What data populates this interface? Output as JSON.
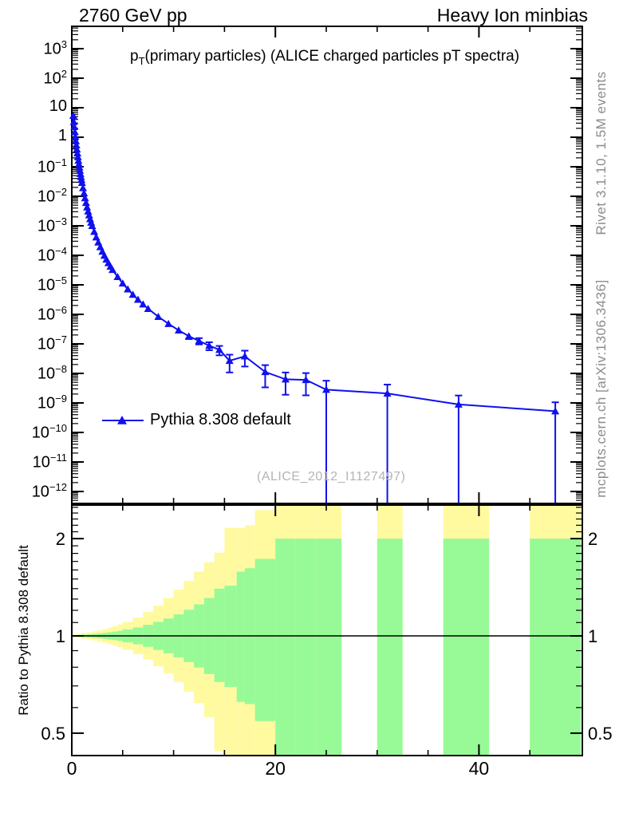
{
  "header": {
    "left": "2760 GeV pp",
    "right": "Heavy Ion minbias"
  },
  "side_notes": {
    "top_right": "Rivet 3.1.10,  1.5M events",
    "bottom_right": "mcplots.cern.ch [arXiv:1306.3436]"
  },
  "watermark": "(ALICE_2012_I1127497)",
  "legend": {
    "entries": [
      {
        "label": "Pythia 8.308 default",
        "marker": "triangle-up-icon",
        "color": "#1010ee"
      }
    ]
  },
  "chart_data": {
    "type": "line",
    "title": {
      "prefix": "p",
      "sub": "T",
      "rest": "(primary particles) (ALICE charged particles pT spectra)"
    },
    "x_axis": {
      "min": 0,
      "max": 50,
      "major_ticks": [
        20,
        40
      ],
      "minor_ticks": [
        5,
        10,
        15,
        25,
        30,
        35,
        45
      ],
      "labels": [
        {
          "text": "0",
          "value": 0
        },
        {
          "text": "20",
          "value": 20
        },
        {
          "text": "40",
          "value": 40
        }
      ]
    },
    "y_axis_main": {
      "scale": "log",
      "top_log10": 3.7,
      "bottom_log10": -12.4,
      "decade_labels": [
        {
          "lg": 3,
          "base": "10",
          "exp": "3"
        },
        {
          "lg": 2,
          "base": "10",
          "exp": "2"
        },
        {
          "lg": 1,
          "base": "10",
          "exp": ""
        },
        {
          "lg": 0,
          "base": "1",
          "exp": ""
        },
        {
          "lg": -1,
          "base": "10",
          "exp": "−1"
        },
        {
          "lg": -2,
          "base": "10",
          "exp": "−2"
        },
        {
          "lg": -3,
          "base": "10",
          "exp": "−3"
        },
        {
          "lg": -4,
          "base": "10",
          "exp": "−4"
        },
        {
          "lg": -5,
          "base": "10",
          "exp": "−5"
        },
        {
          "lg": -6,
          "base": "10",
          "exp": "−6"
        },
        {
          "lg": -7,
          "base": "10",
          "exp": "−7"
        },
        {
          "lg": -8,
          "base": "10",
          "exp": "−8"
        },
        {
          "lg": -9,
          "base": "10",
          "exp": "−9"
        },
        {
          "lg": -10,
          "base": "10",
          "exp": "−10"
        },
        {
          "lg": -11,
          "base": "10",
          "exp": "−11"
        },
        {
          "lg": -12,
          "base": "10",
          "exp": "−12"
        }
      ]
    },
    "y_axis_ratio": {
      "scale": "log",
      "min": 0.42,
      "max": 2.6,
      "label": "Ratio to Pythia 8.308 default",
      "tick_labels": [
        {
          "text": "2",
          "value": 2
        },
        {
          "text": "1",
          "value": 1
        },
        {
          "text": "0.5",
          "value": 0.5
        }
      ],
      "minor_ticks": [
        0.6,
        0.7,
        0.8,
        0.9,
        1.1,
        1.2,
        1.3,
        1.4,
        1.5,
        1.6,
        1.7,
        1.8,
        1.9,
        2.1,
        2.2,
        2.3,
        2.4,
        2.5
      ]
    },
    "series": [
      {
        "name": "Pythia 8.308 default",
        "color": "#1010ee",
        "marker": "triangle-up",
        "points_format": [
          "pt_GeV",
          "log10_value",
          "relative_error"
        ],
        "points": [
          [
            0.15,
            0.73,
            0
          ],
          [
            0.2,
            0.52,
            0
          ],
          [
            0.25,
            0.35,
            0
          ],
          [
            0.3,
            0.18,
            0
          ],
          [
            0.35,
            0.02,
            0
          ],
          [
            0.4,
            -0.13,
            0
          ],
          [
            0.45,
            -0.27,
            0
          ],
          [
            0.5,
            -0.41,
            0
          ],
          [
            0.55,
            -0.54,
            0
          ],
          [
            0.6,
            -0.67,
            0
          ],
          [
            0.65,
            -0.79,
            0
          ],
          [
            0.7,
            -0.91,
            0
          ],
          [
            0.75,
            -1.02,
            0
          ],
          [
            0.8,
            -1.13,
            0
          ],
          [
            0.85,
            -1.24,
            0
          ],
          [
            0.9,
            -1.34,
            0
          ],
          [
            0.95,
            -1.44,
            0
          ],
          [
            1.0,
            -1.54,
            0
          ],
          [
            1.1,
            -1.72,
            0
          ],
          [
            1.2,
            -1.9,
            0
          ],
          [
            1.3,
            -2.06,
            0
          ],
          [
            1.4,
            -2.22,
            0
          ],
          [
            1.5,
            -2.37,
            0
          ],
          [
            1.6,
            -2.51,
            0
          ],
          [
            1.7,
            -2.64,
            0
          ],
          [
            1.8,
            -2.77,
            0
          ],
          [
            1.9,
            -2.89,
            0
          ],
          [
            2.0,
            -3.0,
            0
          ],
          [
            2.2,
            -3.2,
            0
          ],
          [
            2.4,
            -3.39,
            0
          ],
          [
            2.6,
            -3.56,
            0
          ],
          [
            2.8,
            -3.72,
            0
          ],
          [
            3.0,
            -3.87,
            0
          ],
          [
            3.2,
            -4.01,
            0
          ],
          [
            3.4,
            -4.14,
            0
          ],
          [
            3.6,
            -4.26,
            0
          ],
          [
            3.8,
            -4.38,
            0
          ],
          [
            4.0,
            -4.49,
            0.04
          ],
          [
            4.5,
            -4.73,
            0.04
          ],
          [
            5.0,
            -4.95,
            0.05
          ],
          [
            5.5,
            -5.15,
            0.05
          ],
          [
            6.0,
            -5.33,
            0.06
          ],
          [
            6.5,
            -5.5,
            0.07
          ],
          [
            7.0,
            -5.66,
            0.08
          ],
          [
            7.5,
            -5.81,
            0.09
          ],
          [
            8.5,
            -6.08,
            0.11
          ],
          [
            9.5,
            -6.32,
            0.14
          ],
          [
            10.5,
            -6.54,
            0.17
          ],
          [
            11.5,
            -6.74,
            0.2
          ],
          [
            12.5,
            -6.9,
            0.24
          ],
          [
            13.5,
            -7.06,
            0.3
          ],
          [
            14.5,
            -7.2,
            0.35
          ],
          [
            15.5,
            -7.57,
            0.6
          ],
          [
            17.0,
            -7.42,
            0.55
          ],
          [
            19.0,
            -7.95,
            0.7
          ],
          [
            21.0,
            -8.2,
            0.7
          ],
          [
            23.0,
            -8.22,
            0.7
          ],
          [
            25.0,
            -8.55,
            1
          ],
          [
            31.0,
            -8.68,
            1
          ],
          [
            38.0,
            -9.05,
            1
          ],
          [
            47.5,
            -9.28,
            1
          ]
        ]
      }
    ],
    "ratio_bands": {
      "yellow": "#fffaa0",
      "green": "#97fa97",
      "bins_format": [
        "pt_lo",
        "pt_hi",
        "yellow_lo",
        "yellow_hi",
        "green_lo",
        "green_hi"
      ],
      "bins": [
        [
          0,
          0.5,
          0.99,
          1.01,
          0.996,
          1.004
        ],
        [
          0.5,
          1,
          0.985,
          1.015,
          0.993,
          1.007
        ],
        [
          1,
          1.5,
          0.98,
          1.02,
          0.991,
          1.009
        ],
        [
          1.5,
          2,
          0.975,
          1.026,
          0.989,
          1.011
        ],
        [
          2,
          2.5,
          0.968,
          1.033,
          0.986,
          1.014
        ],
        [
          2.5,
          3,
          0.96,
          1.042,
          0.983,
          1.017
        ],
        [
          3,
          3.5,
          0.952,
          1.05,
          0.979,
          1.021
        ],
        [
          3.5,
          4,
          0.943,
          1.06,
          0.975,
          1.026
        ],
        [
          4,
          4.5,
          0.933,
          1.072,
          0.97,
          1.031
        ],
        [
          4.5,
          5,
          0.922,
          1.085,
          0.965,
          1.037
        ],
        [
          5,
          6,
          0.905,
          1.105,
          0.955,
          1.047
        ],
        [
          6,
          7,
          0.878,
          1.14,
          0.942,
          1.062
        ],
        [
          7,
          8,
          0.845,
          1.185,
          0.925,
          1.082
        ],
        [
          8,
          9,
          0.805,
          1.24,
          0.905,
          1.105
        ],
        [
          9,
          10,
          0.765,
          1.31,
          0.883,
          1.132
        ],
        [
          10,
          11,
          0.72,
          1.39,
          0.858,
          1.166
        ],
        [
          11,
          12,
          0.672,
          1.48,
          0.83,
          1.205
        ],
        [
          12,
          13,
          0.62,
          1.58,
          0.798,
          1.252
        ],
        [
          13,
          14,
          0.56,
          1.69,
          0.762,
          1.31
        ],
        [
          14,
          15,
          0.44,
          1.81,
          0.72,
          1.4
        ],
        [
          15,
          16.2,
          0.42,
          2.16,
          0.695,
          1.43
        ],
        [
          16.2,
          17,
          0.42,
          2.16,
          0.625,
          1.58
        ],
        [
          17,
          18,
          0.42,
          2.2,
          0.615,
          1.62
        ],
        [
          18,
          20,
          0.42,
          2.45,
          0.545,
          1.73
        ],
        [
          20,
          22,
          0.42,
          2.6,
          0.42,
          2.0
        ],
        [
          22,
          24,
          0.42,
          2.6,
          0.42,
          2.0
        ],
        [
          24,
          26.5,
          0.42,
          2.6,
          0.42,
          2.0
        ],
        [
          30,
          32.5,
          0.42,
          2.6,
          0.42,
          2.0
        ],
        [
          36.5,
          41,
          0.42,
          2.6,
          0.42,
          2.0
        ],
        [
          45,
          50,
          0.42,
          2.6,
          0.42,
          2.0
        ]
      ]
    }
  }
}
